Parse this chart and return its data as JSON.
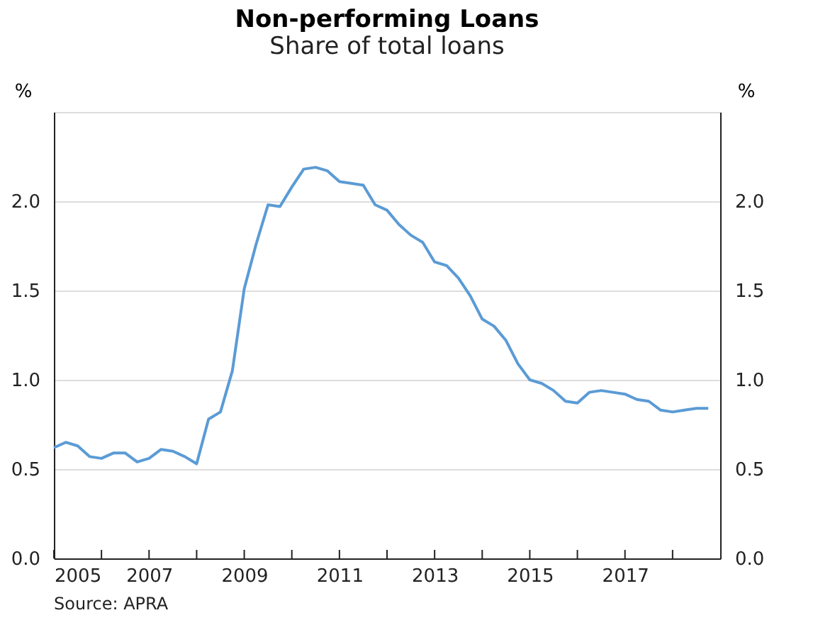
{
  "chart_data": {
    "type": "line",
    "title": "Non-performing Loans",
    "subtitle": "Share of total loans",
    "ylabel": "%",
    "y2label": "%",
    "x": [
      2005.0,
      2005.25,
      2005.5,
      2005.75,
      2006.0,
      2006.25,
      2006.5,
      2006.75,
      2007.0,
      2007.25,
      2007.5,
      2007.75,
      2008.0,
      2008.25,
      2008.5,
      2008.75,
      2009.0,
      2009.25,
      2009.5,
      2009.75,
      2010.0,
      2010.25,
      2010.5,
      2010.75,
      2011.0,
      2011.25,
      2011.5,
      2011.75,
      2012.0,
      2012.25,
      2012.5,
      2012.75,
      2013.0,
      2013.25,
      2013.5,
      2013.75,
      2014.0,
      2014.25,
      2014.5,
      2014.75,
      2015.0,
      2015.25,
      2015.5,
      2015.75,
      2016.0,
      2016.25,
      2016.5,
      2016.75,
      2017.0,
      2017.25,
      2017.5,
      2017.75,
      2018.0,
      2018.25,
      2018.5,
      2018.75
    ],
    "series": [
      {
        "color": "#5b9bd5",
        "values": [
          0.62,
          0.65,
          0.63,
          0.57,
          0.56,
          0.59,
          0.59,
          0.54,
          0.56,
          0.61,
          0.6,
          0.57,
          0.53,
          0.78,
          0.82,
          1.05,
          1.51,
          1.76,
          1.98,
          1.97,
          2.08,
          2.18,
          2.19,
          2.17,
          2.11,
          2.1,
          2.09,
          1.98,
          1.95,
          1.87,
          1.81,
          1.77,
          1.66,
          1.64,
          1.57,
          1.47,
          1.34,
          1.3,
          1.22,
          1.09,
          1.0,
          0.98,
          0.94,
          0.88,
          0.87,
          0.93,
          0.94,
          0.93,
          0.92,
          0.89,
          0.88,
          0.83,
          0.82,
          0.83,
          0.84,
          0.84
        ]
      }
    ],
    "xlim": [
      2005,
      2019
    ],
    "xticks": [
      2005,
      {
        "value": 2006,
        "label": null
      },
      2007,
      {
        "value": 2008,
        "label": null
      },
      2009,
      {
        "value": 2010,
        "label": null
      },
      2011,
      {
        "value": 2012,
        "label": null
      },
      2013,
      {
        "value": 2014,
        "label": null
      },
      2015,
      {
        "value": 2016,
        "label": null
      },
      2017,
      {
        "value": 2018,
        "label": null
      }
    ],
    "ylim": [
      0,
      2.5
    ],
    "yticks": [
      {
        "value": 0,
        "label": "0.0"
      },
      0.5,
      {
        "value": 1,
        "label": "1.0"
      },
      1.5,
      {
        "value": 2,
        "label": "2.0"
      }
    ],
    "y2lim": [
      0,
      2.5
    ],
    "y2ticks": [
      {
        "value": 0,
        "label": "0.0"
      },
      0.5,
      {
        "value": 1,
        "label": "1.0"
      },
      1.5,
      {
        "value": 2,
        "label": "2.0"
      }
    ],
    "grid": "y",
    "line_style": "solid",
    "marker": "none",
    "legend": false,
    "annotations": [
      "Source: APRA"
    ]
  }
}
